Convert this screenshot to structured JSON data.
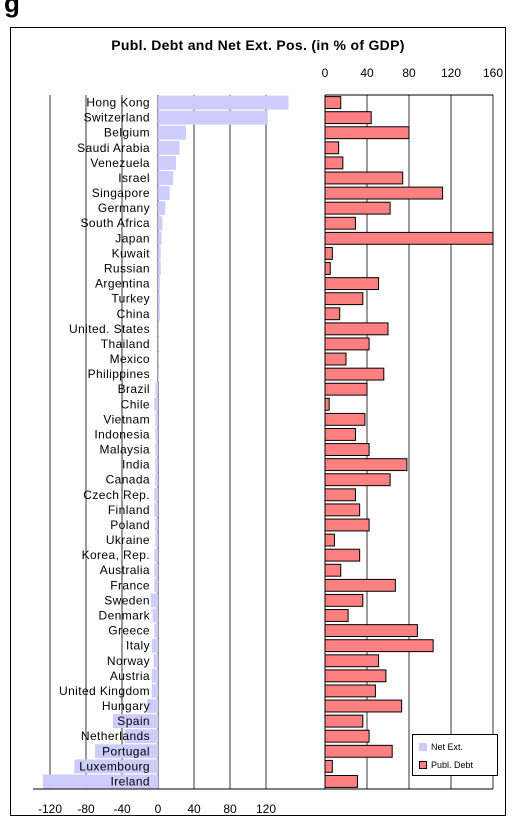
{
  "header": {
    "text": "g"
  },
  "chart_data": {
    "type": "bar",
    "title": "Publ. Debt and Net Ext. Pos. (in % of GDP)",
    "categories": [
      "Hong Kong",
      "Switzerland",
      "Belgium",
      "Saudi Arabia",
      "Venezuela",
      "Israel",
      "Singapore",
      "Germany",
      "South Africa",
      "Japan",
      "Kuwait",
      "Russian",
      "Argentina",
      "Turkey",
      "China",
      "United. States",
      "Thailand",
      "Mexico",
      "Philippines",
      "Brazil",
      "Chile",
      "Vietnam",
      "Indonesia",
      "Malaysia",
      "India",
      "Canada",
      "Czech Rep.",
      "Finland",
      "Poland",
      "Ukraine",
      "Korea, Rep.",
      "Australia",
      "France",
      "Sweden",
      "Denmark",
      "Greece",
      "Italy",
      "Norway",
      "Austria",
      "United Kingdom",
      "Hungary",
      "Spain",
      "Netherlands",
      "Portugal",
      "Luxembourg",
      "Ireland"
    ],
    "series": [
      {
        "name": "Net Ext.",
        "color": "#ccccff",
        "values": [
          145,
          122,
          31,
          24,
          20,
          17,
          13,
          8,
          5,
          4,
          3,
          3,
          2,
          2,
          2,
          1,
          1,
          1,
          1,
          -3,
          -4,
          -3,
          -3,
          -3,
          -3,
          -3,
          -4,
          -4,
          -3,
          -3,
          -4,
          -4,
          -4,
          -8,
          -6,
          -4,
          -7,
          -5,
          -7,
          -7,
          -12,
          -50,
          -37,
          -70,
          -93,
          -128
        ]
      },
      {
        "name": "Publ. Debt",
        "color": "#ff8080",
        "values": [
          15,
          44,
          80,
          13,
          17,
          74,
          112,
          62,
          29,
          175,
          7,
          5,
          51,
          36,
          14,
          60,
          42,
          20,
          56,
          40,
          4,
          38,
          29,
          42,
          78,
          62,
          29,
          33,
          42,
          9,
          33,
          15,
          67,
          36,
          22,
          88,
          103,
          51,
          58,
          48,
          73,
          36,
          42,
          64,
          7,
          31
        ]
      }
    ],
    "left_axis": {
      "ticks": [
        -120,
        -80,
        -40,
        0,
        40,
        80,
        120
      ],
      "range": [
        -125,
        150
      ]
    },
    "right_axis": {
      "ticks": [
        0,
        40,
        80,
        120,
        160
      ],
      "range": [
        0,
        160
      ]
    },
    "legend_position": "bottom-right"
  }
}
